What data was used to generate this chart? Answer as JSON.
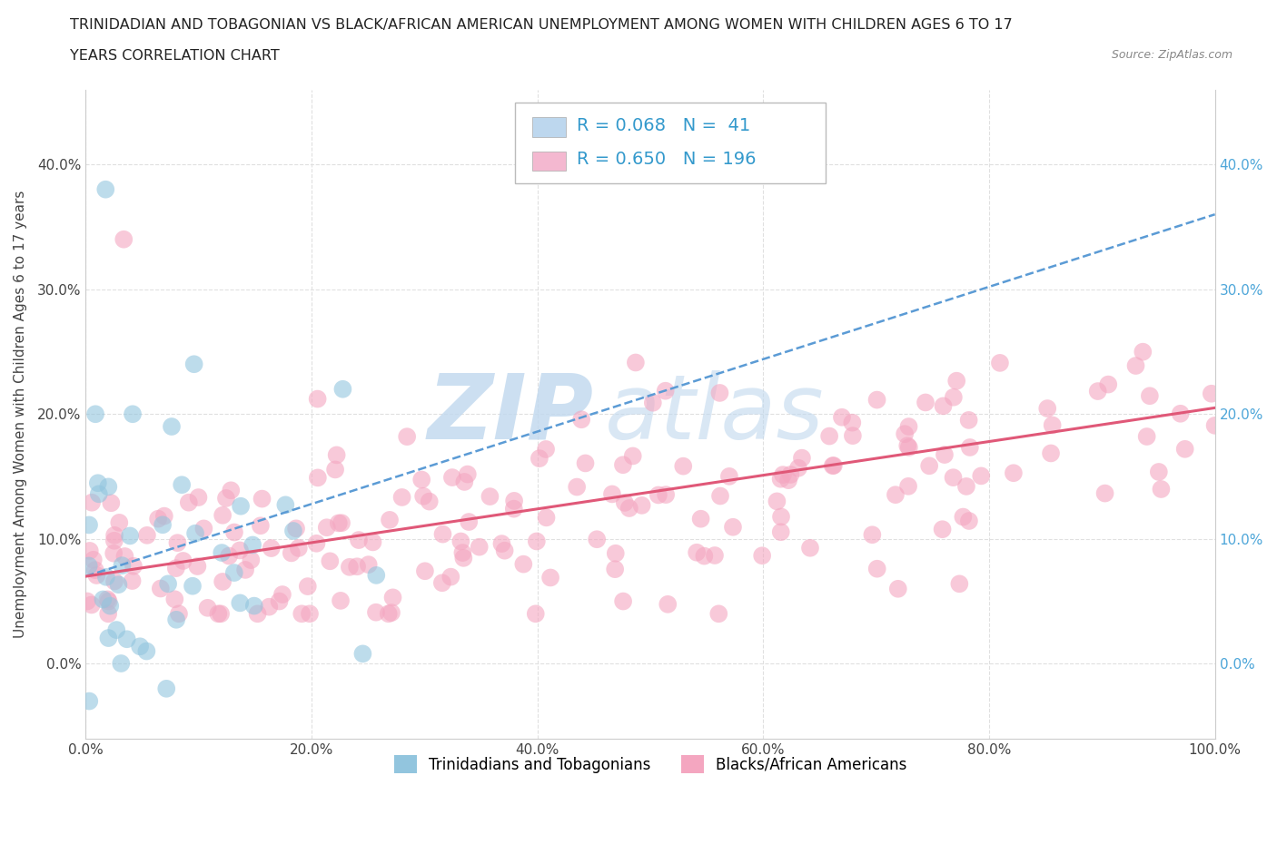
{
  "title_line1": "TRINIDADIAN AND TOBAGONIAN VS BLACK/AFRICAN AMERICAN UNEMPLOYMENT AMONG WOMEN WITH CHILDREN AGES 6 TO 17",
  "title_line2": "YEARS CORRELATION CHART",
  "source_text": "Source: ZipAtlas.com",
  "ylabel": "Unemployment Among Women with Children Ages 6 to 17 years",
  "blue_R": 0.068,
  "blue_N": 41,
  "pink_R": 0.65,
  "pink_N": 196,
  "blue_scatter_color": "#92c5de",
  "pink_scatter_color": "#f4a6c0",
  "blue_line_color": "#5b9bd5",
  "pink_line_color": "#e05878",
  "legend_box_blue": "#bdd7ee",
  "legend_box_pink": "#f4b8d0",
  "watermark_color": "#cce0f0",
  "bg_color": "#ffffff",
  "grid_color": "#e0e0e0",
  "xlim": [
    0.0,
    1.0
  ],
  "ylim": [
    -0.06,
    0.46
  ],
  "xticks": [
    0.0,
    0.2,
    0.4,
    0.6,
    0.8,
    1.0
  ],
  "xtick_labels": [
    "0.0%",
    "20.0%",
    "40.0%",
    "60.0%",
    "80.0%",
    "100.0%"
  ],
  "yticks": [
    0.0,
    0.1,
    0.2,
    0.3,
    0.4
  ],
  "ytick_labels": [
    "0.0%",
    "10.0%",
    "20.0%",
    "30.0%",
    "40.0%"
  ],
  "blue_trend_x0": 0.0,
  "blue_trend_y0": 0.07,
  "blue_trend_x1": 1.0,
  "blue_trend_y1": 0.36,
  "pink_trend_x0": 0.0,
  "pink_trend_y0": 0.07,
  "pink_trend_x1": 1.0,
  "pink_trend_y1": 0.205,
  "legend_R_color": "#3399cc",
  "legend_N_color": "#3399cc",
  "right_tick_color": "#4da6d9"
}
